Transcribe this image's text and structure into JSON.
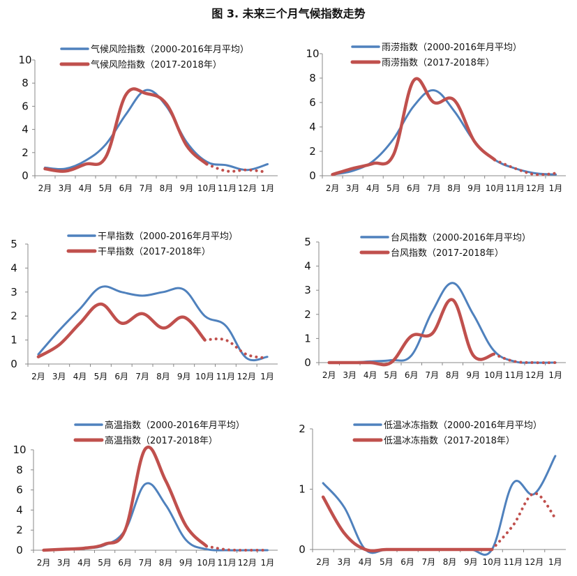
{
  "figure_title": "图 3. 未来三个月气候指数走势",
  "colors": {
    "average": "#4F81BD",
    "actual": "#C0504D"
  },
  "chart_data": [
    {
      "type": "line",
      "categories": [
        "2月",
        "3月",
        "4月",
        "5月",
        "6月",
        "7月",
        "8月",
        "9月",
        "10月",
        "11月",
        "12月",
        "1月"
      ],
      "ylim": [
        0,
        10
      ],
      "yticks": [
        "0",
        "2",
        "4",
        "6",
        "8",
        "10"
      ],
      "series": [
        {
          "name": "气候风险指数（2000-2016年月平均）",
          "values": [
            0.7,
            0.6,
            1.3,
            2.7,
            5.3,
            7.4,
            6.0,
            2.9,
            1.2,
            0.9,
            0.5,
            1.0
          ]
        },
        {
          "name": "气候风险指数（2017-2018年）",
          "values": [
            0.6,
            0.4,
            1.0,
            1.6,
            7.0,
            7.1,
            6.2,
            2.6,
            1.0,
            null,
            null,
            null
          ],
          "forecast": [
            null,
            null,
            null,
            null,
            null,
            null,
            null,
            null,
            1.0,
            0.4,
            0.5,
            0.3
          ]
        }
      ]
    },
    {
      "type": "line",
      "categories": [
        "2月",
        "3月",
        "4月",
        "5月",
        "6月",
        "7月",
        "8月",
        "9月",
        "10月",
        "11月",
        "12月",
        "1月"
      ],
      "ylim": [
        0,
        10
      ],
      "yticks": [
        "0",
        "2",
        "4",
        "6",
        "8",
        "10"
      ],
      "series": [
        {
          "name": "雨涝指数（2000-2016年月平均）",
          "values": [
            0.1,
            0.4,
            1.2,
            3.0,
            5.7,
            7.0,
            5.3,
            2.8,
            1.3,
            0.6,
            0.2,
            0.1
          ]
        },
        {
          "name": "雨涝指数（2017-2018年）",
          "values": [
            0.1,
            0.6,
            1.0,
            1.7,
            7.8,
            6.0,
            6.2,
            2.8,
            1.3,
            null,
            null,
            null
          ],
          "forecast": [
            null,
            null,
            null,
            null,
            null,
            null,
            null,
            null,
            1.3,
            0.6,
            0.1,
            0.2
          ]
        }
      ]
    },
    {
      "type": "line",
      "categories": [
        "2月",
        "3月",
        "4月",
        "5月",
        "6月",
        "7月",
        "8月",
        "9月",
        "10月",
        "11月",
        "12月",
        "1月"
      ],
      "ylim": [
        0,
        5
      ],
      "yticks": [
        "0",
        "1",
        "2",
        "3",
        "4",
        "5"
      ],
      "series": [
        {
          "name": "干旱指数（2000-2016年月平均）",
          "values": [
            0.4,
            1.4,
            2.3,
            3.2,
            3.0,
            2.85,
            3.0,
            3.1,
            2.0,
            1.6,
            0.25,
            0.3
          ]
        },
        {
          "name": "干旱指数（2017-2018年）",
          "values": [
            0.3,
            0.8,
            1.7,
            2.5,
            1.7,
            2.1,
            1.5,
            1.95,
            1.0,
            null,
            null,
            null
          ],
          "forecast": [
            null,
            null,
            null,
            null,
            null,
            null,
            null,
            null,
            1.0,
            1.0,
            0.4,
            0.25
          ]
        }
      ]
    },
    {
      "type": "line",
      "categories": [
        "2月",
        "3月",
        "4月",
        "5月",
        "6月",
        "7月",
        "8月",
        "9月",
        "10月",
        "11月",
        "12月",
        "1月"
      ],
      "ylim": [
        0,
        5
      ],
      "yticks": [
        "0",
        "1",
        "2",
        "3",
        "4",
        "5"
      ],
      "series": [
        {
          "name": "台风指数（2000-2016年月平均）",
          "values": [
            0,
            0,
            0.05,
            0.1,
            0.3,
            2.1,
            3.3,
            2.0,
            0.5,
            0.05,
            0,
            0
          ]
        },
        {
          "name": "台风指数（2017-2018年）",
          "values": [
            0,
            0,
            0,
            0,
            1.1,
            1.2,
            2.6,
            0.3,
            0.35,
            null,
            null,
            null
          ],
          "forecast": [
            null,
            null,
            null,
            null,
            null,
            null,
            null,
            null,
            0.35,
            0.05,
            0,
            0
          ]
        }
      ]
    },
    {
      "type": "line",
      "categories": [
        "2月",
        "3月",
        "4月",
        "5月",
        "6月",
        "7月",
        "8月",
        "9月",
        "10月",
        "11月",
        "12月",
        "1月"
      ],
      "ylim": [
        0,
        10
      ],
      "yticks": [
        "0",
        "2",
        "4",
        "6",
        "8",
        "10"
      ],
      "series": [
        {
          "name": "高温指数（2000-2016年月平均）",
          "values": [
            0,
            0.1,
            0.2,
            0.5,
            2.0,
            6.6,
            4.5,
            1.0,
            0.1,
            0,
            0,
            0
          ]
        },
        {
          "name": "高温指数（2017-2018年）",
          "values": [
            0,
            0.1,
            0.2,
            0.6,
            2.0,
            10.1,
            6.9,
            2.4,
            0.4,
            null,
            null,
            null
          ],
          "forecast": [
            null,
            null,
            null,
            null,
            null,
            null,
            null,
            null,
            0.4,
            0.05,
            0,
            0
          ]
        }
      ]
    },
    {
      "type": "line",
      "categories": [
        "2月",
        "3月",
        "4月",
        "5月",
        "6月",
        "7月",
        "8月",
        "9月",
        "10月",
        "11月",
        "12月",
        "1月"
      ],
      "ylim": [
        0,
        2
      ],
      "yticks": [
        "0",
        "1",
        "2"
      ],
      "series": [
        {
          "name": "低温冰冻指数（2000-2016年月平均）",
          "values": [
            1.1,
            0.7,
            0,
            0,
            0,
            0,
            0,
            0,
            0,
            1.1,
            0.92,
            1.55
          ]
        },
        {
          "name": "低温冰冻指数（2017-2018年）",
          "values": [
            0.87,
            0.27,
            0,
            0,
            0,
            0,
            0,
            0,
            0,
            null,
            null,
            null
          ],
          "forecast": [
            null,
            null,
            null,
            null,
            null,
            null,
            null,
            null,
            0,
            0.4,
            0.93,
            0.52
          ]
        }
      ]
    }
  ]
}
